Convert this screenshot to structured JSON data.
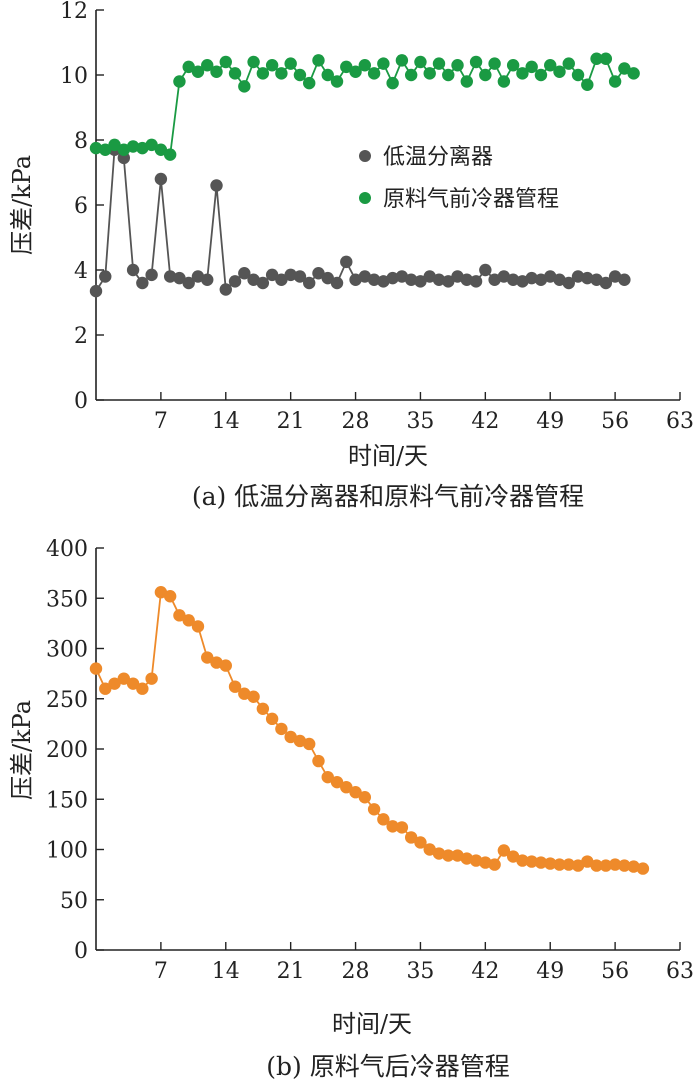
{
  "chart_data": [
    {
      "type": "line",
      "caption": "(a) 低温分离器和原料气前冷器管程",
      "xlabel": "时间/天",
      "ylabel": "压差/kPa",
      "xlim": [
        0,
        63
      ],
      "ylim": [
        0,
        12
      ],
      "xticks": [
        7,
        14,
        21,
        28,
        35,
        42,
        49,
        56,
        63
      ],
      "yticks": [
        0,
        2,
        4,
        6,
        8,
        10,
        12
      ],
      "legend_position": "center-right",
      "series": [
        {
          "name": "低温分离器",
          "color": "#555555",
          "x": [
            0,
            1,
            2,
            3,
            4,
            5,
            6,
            7,
            8,
            9,
            10,
            11,
            12,
            13,
            14,
            15,
            16,
            17,
            18,
            19,
            20,
            21,
            22,
            23,
            24,
            25,
            26,
            27,
            28,
            29,
            30,
            31,
            32,
            33,
            34,
            35,
            36,
            37,
            38,
            39,
            40,
            41,
            42,
            43,
            44,
            45,
            46,
            47,
            48,
            49,
            50,
            51,
            52,
            53,
            54,
            55,
            56,
            57
          ],
          "values": [
            3.35,
            3.8,
            7.7,
            7.45,
            4.0,
            3.6,
            3.85,
            6.8,
            3.8,
            3.75,
            3.6,
            3.8,
            3.7,
            6.6,
            3.4,
            3.65,
            3.9,
            3.7,
            3.6,
            3.85,
            3.7,
            3.85,
            3.8,
            3.6,
            3.9,
            3.75,
            3.6,
            4.25,
            3.7,
            3.8,
            3.7,
            3.65,
            3.75,
            3.8,
            3.7,
            3.65,
            3.8,
            3.7,
            3.65,
            3.8,
            3.7,
            3.65,
            4.0,
            3.7,
            3.8,
            3.7,
            3.65,
            3.75,
            3.7,
            3.8,
            3.7,
            3.6,
            3.8,
            3.75,
            3.7,
            3.6,
            3.8,
            3.7
          ]
        },
        {
          "name": "原料气前冷器管程",
          "color": "#1a9a43",
          "x": [
            0,
            1,
            2,
            3,
            4,
            5,
            6,
            7,
            8,
            9,
            10,
            11,
            12,
            13,
            14,
            15,
            16,
            17,
            18,
            19,
            20,
            21,
            22,
            23,
            24,
            25,
            26,
            27,
            28,
            29,
            30,
            31,
            32,
            33,
            34,
            35,
            36,
            37,
            38,
            39,
            40,
            41,
            42,
            43,
            44,
            45,
            46,
            47,
            48,
            49,
            50,
            51,
            52,
            53,
            54,
            55,
            56,
            57,
            58
          ],
          "values": [
            7.75,
            7.7,
            7.85,
            7.7,
            7.8,
            7.75,
            7.85,
            7.7,
            7.55,
            9.8,
            10.25,
            10.1,
            10.3,
            10.1,
            10.4,
            10.05,
            9.65,
            10.4,
            10.05,
            10.3,
            10.05,
            10.35,
            10.0,
            9.75,
            10.45,
            10.0,
            9.8,
            10.25,
            10.1,
            10.3,
            10.05,
            10.35,
            9.75,
            10.45,
            10.0,
            10.4,
            10.05,
            10.35,
            10.0,
            10.3,
            9.8,
            10.4,
            10.0,
            10.35,
            9.8,
            10.3,
            10.05,
            10.25,
            10.0,
            10.3,
            10.1,
            10.35,
            10.0,
            9.7,
            10.5,
            10.5,
            9.8,
            10.2,
            10.05
          ]
        }
      ]
    },
    {
      "type": "line",
      "caption": "(b) 原料气后冷器管程",
      "xlabel": "时间/天",
      "ylabel": "压差/kPa",
      "xlim": [
        0,
        63
      ],
      "ylim": [
        0,
        400
      ],
      "xticks": [
        7,
        14,
        21,
        28,
        35,
        42,
        49,
        56,
        63
      ],
      "yticks": [
        0,
        50,
        100,
        150,
        200,
        250,
        300,
        350,
        400
      ],
      "series": [
        {
          "color": "#ee8a2a",
          "x": [
            0,
            1,
            2,
            3,
            4,
            5,
            6,
            7,
            8,
            9,
            10,
            11,
            12,
            13,
            14,
            15,
            16,
            17,
            18,
            19,
            20,
            21,
            22,
            23,
            24,
            25,
            26,
            27,
            28,
            29,
            30,
            31,
            32,
            33,
            34,
            35,
            36,
            37,
            38,
            39,
            40,
            41,
            42,
            43,
            44,
            45,
            46,
            47,
            48,
            49,
            50,
            51,
            52,
            53,
            54,
            55,
            56,
            57,
            58,
            59
          ],
          "values": [
            280,
            260,
            265,
            270,
            265,
            260,
            270,
            356,
            352,
            333,
            328,
            322,
            291,
            286,
            283,
            262,
            255,
            252,
            240,
            230,
            220,
            212,
            208,
            205,
            188,
            172,
            167,
            162,
            157,
            152,
            140,
            130,
            123,
            122,
            112,
            107,
            100,
            96,
            94,
            94,
            91,
            89,
            87,
            85,
            99,
            93,
            89,
            88,
            87,
            86,
            85,
            85,
            84,
            88,
            84,
            84,
            85,
            84,
            83,
            81
          ]
        }
      ]
    }
  ]
}
